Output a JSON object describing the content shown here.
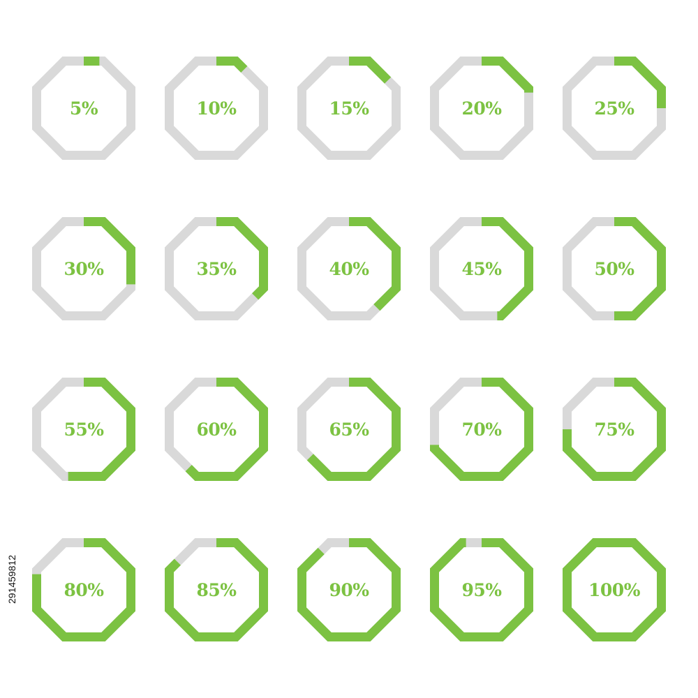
{
  "colors": {
    "progress": "#7cc242",
    "track": "#d9d9d9",
    "label": "#7cc242",
    "background": "#ffffff"
  },
  "stock_id": "291459812",
  "badges": [
    {
      "label": "5%",
      "value": 5
    },
    {
      "label": "10%",
      "value": 10
    },
    {
      "label": "15%",
      "value": 15
    },
    {
      "label": "20%",
      "value": 20
    },
    {
      "label": "25%",
      "value": 25
    },
    {
      "label": "30%",
      "value": 30
    },
    {
      "label": "35%",
      "value": 35
    },
    {
      "label": "40%",
      "value": 40
    },
    {
      "label": "45%",
      "value": 45
    },
    {
      "label": "50%",
      "value": 50
    },
    {
      "label": "55%",
      "value": 55
    },
    {
      "label": "60%",
      "value": 60
    },
    {
      "label": "65%",
      "value": 65
    },
    {
      "label": "70%",
      "value": 70
    },
    {
      "label": "75%",
      "value": 75
    },
    {
      "label": "80%",
      "value": 80
    },
    {
      "label": "85%",
      "value": 85
    },
    {
      "label": "90%",
      "value": 90
    },
    {
      "label": "95%",
      "value": 95
    },
    {
      "label": "100%",
      "value": 100
    }
  ]
}
